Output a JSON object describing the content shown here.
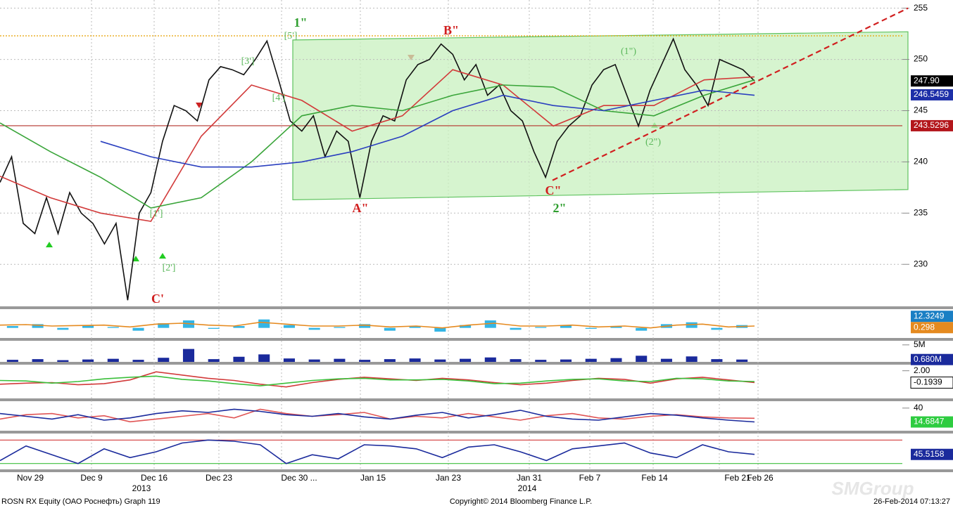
{
  "chart_data": [
    {
      "type": "line",
      "ylim": [
        225.9,
        255.8
      ],
      "yticks": [
        230,
        235,
        240,
        245,
        250,
        255
      ],
      "grid": true,
      "series": [
        {
          "color": "#111111",
          "values": [
            238,
            240.5,
            234,
            233,
            236.5,
            233,
            237,
            235,
            234,
            232,
            234,
            226.5,
            235,
            237,
            242,
            245.5,
            245,
            244,
            248,
            249.3,
            249,
            248.5,
            250,
            251.8,
            248,
            244,
            243,
            244.5,
            240.5,
            243,
            242,
            236.5,
            242,
            244.5,
            244,
            248,
            249.5,
            250,
            251.5,
            250.5,
            248,
            249.5,
            246.5,
            247.5,
            245,
            244,
            241,
            238.5,
            242,
            243.5,
            244.5,
            247.5,
            249,
            249.5,
            246.5,
            243.5,
            247,
            249.5,
            252,
            249,
            247.5,
            245.5,
            250,
            249.5,
            249,
            247.9
          ]
        },
        {
          "color": "#d23a3a",
          "values": [
            238.6,
            236.5,
            235,
            234.2,
            242.5,
            247.5,
            246,
            243,
            244.5,
            249,
            247.5,
            243.5,
            245.5,
            245.5,
            248,
            248.3
          ]
        },
        {
          "color": "#3aa53a",
          "values": [
            243.8,
            241,
            238.5,
            235.5,
            236.5,
            240,
            244.5,
            245.5,
            245,
            246.5,
            247.5,
            247.3,
            245,
            244.5,
            246.5,
            248
          ]
        },
        {
          "color": "#2a3fbf",
          "values": [
            null,
            null,
            242,
            240.5,
            239.5,
            239.5,
            240,
            241,
            242.5,
            245,
            246.5,
            245.5,
            245,
            246,
            247,
            246.5
          ]
        }
      ],
      "hlines": [
        {
          "value": 252.3,
          "color": "#e8a000"
        },
        {
          "value": 243.5296,
          "color": "#b5322b"
        }
      ],
      "channel": {
        "top": [
          251.9,
          252.7
        ],
        "bottom": [
          236.3,
          237.3
        ],
        "color": "#c8f0bf"
      },
      "trendline": {
        "values": [
          238.2,
          255
        ],
        "color": "#d11f1f"
      },
      "tags": [
        {
          "value": 247.9,
          "label": "247.90",
          "color": "#000000"
        },
        {
          "value": 246.5459,
          "color": "#1d2fa8"
        },
        {
          "value": 243.5296,
          "color": "#b3161b"
        }
      ],
      "annotations": [
        {
          "text": "1\"",
          "color": "#2e9e2e"
        },
        {
          "text": "[5']",
          "color": "#5cb85c"
        },
        {
          "text": "[3']",
          "color": "#5cb85c"
        },
        {
          "text": "[4']",
          "color": "#5cb85c"
        },
        {
          "text": "[1']",
          "color": "#5cb85c"
        },
        {
          "text": "[2']",
          "color": "#5cb85c"
        },
        {
          "text": "C'",
          "color": "#d11f1f"
        },
        {
          "text": "B\"",
          "color": "#d11f1f"
        },
        {
          "text": "A\"",
          "color": "#d11f1f"
        },
        {
          "text": "C\"",
          "color": "#d11f1f"
        },
        {
          "text": "2\"",
          "color": "#2e9e2e"
        },
        {
          "text": "(1\")",
          "color": "#5cb85c"
        },
        {
          "text": "(2\")",
          "color": "#5cb85c"
        }
      ]
    },
    {
      "type": "bar",
      "ylim": [
        -10,
        20
      ],
      "yticks": [],
      "series": [
        {
          "color": "#33b5e5",
          "values": [
            2,
            4,
            -2,
            3,
            1,
            -3,
            5,
            8,
            -1,
            2,
            9,
            3,
            -2,
            1,
            4,
            -3,
            2,
            -4,
            3,
            8,
            -2,
            1,
            3,
            -1,
            2,
            -3,
            4,
            6,
            -2,
            3
          ]
        },
        {
          "type": "line",
          "color": "#e58a1f",
          "values": [
            3,
            3.5,
            2,
            2.5,
            3,
            1,
            4,
            5,
            3,
            2,
            6,
            4,
            2,
            2,
            3,
            1,
            2,
            0,
            3,
            5,
            2,
            2,
            3,
            1,
            2,
            0,
            3,
            4,
            1,
            2
          ]
        }
      ],
      "tags": [
        {
          "value": 12.3249,
          "color": "#1a7fc4"
        },
        {
          "value": 0.298,
          "color": "#e58a1f"
        }
      ]
    },
    {
      "type": "bar",
      "ylim": [
        0,
        6
      ],
      "yticks": [
        {
          "value": 5,
          "label": "5M"
        }
      ],
      "series": [
        {
          "color": "#1a2a9c",
          "values": [
            0.6,
            0.8,
            0.5,
            0.7,
            0.9,
            0.6,
            1.2,
            3.8,
            0.8,
            1.5,
            2.2,
            1.0,
            0.7,
            0.9,
            0.6,
            0.8,
            1.0,
            0.7,
            0.9,
            1.3,
            0.8,
            0.6,
            0.7,
            0.9,
            1.1,
            1.8,
            0.9,
            1.6,
            0.8,
            0.68
          ]
        }
      ],
      "tags": [
        {
          "value": 0.68,
          "label": "0.680M",
          "color": "#1a2a9c"
        }
      ]
    },
    {
      "type": "line",
      "ylim": [
        -3,
        3
      ],
      "yticks": [
        {
          "value": 2,
          "label": "2.00"
        }
      ],
      "series": [
        {
          "color": "#d23a3a",
          "values": [
            -0.5,
            -0.3,
            -0.2,
            -0.6,
            -0.4,
            0.3,
            1.8,
            1.2,
            0.6,
            0.2,
            -0.5,
            -1.0,
            -0.2,
            0.4,
            0.8,
            0.5,
            0.2,
            0.6,
            0.3,
            -0.2,
            -0.6,
            -0.3,
            0.2,
            0.6,
            0.4,
            -0.3,
            0.5,
            0.8,
            0.3,
            -0.1939
          ]
        },
        {
          "color": "#3bbf3b",
          "values": [
            0.2,
            0.1,
            -0.3,
            0.0,
            0.5,
            0.8,
            1.0,
            0.4,
            0.1,
            -0.4,
            -0.8,
            -0.3,
            0.2,
            0.5,
            0.6,
            0.3,
            0.3,
            0.4,
            0.1,
            -0.4,
            -0.3,
            0.1,
            0.4,
            0.5,
            0.1,
            0.0,
            0.6,
            0.5,
            0.1,
            0.0
          ]
        }
      ],
      "tags": [
        {
          "value": -0.1939,
          "color": "#ffffff"
        }
      ]
    },
    {
      "type": "line",
      "ylim": [
        0,
        50
      ],
      "yticks": [
        40
      ],
      "series": [
        {
          "color": "#e05555",
          "values": [
            20,
            28,
            30,
            22,
            26,
            15,
            20,
            25,
            30,
            22,
            38,
            30,
            25,
            28,
            32,
            20,
            25,
            22,
            30,
            24,
            18,
            26,
            30,
            22,
            20,
            25,
            28,
            24,
            22,
            21.4
          ]
        },
        {
          "color": "#1a2a9c",
          "values": [
            30,
            25,
            20,
            28,
            18,
            22,
            30,
            35,
            32,
            38,
            34,
            28,
            25,
            30,
            24,
            20,
            27,
            32,
            22,
            28,
            36,
            25,
            20,
            18,
            24,
            30,
            27,
            22,
            18,
            14.6847
          ]
        }
      ],
      "tags": [
        {
          "value": 14.6847,
          "color": "#2ecc40"
        }
      ]
    },
    {
      "type": "line",
      "ylim": [
        20,
        80
      ],
      "yticks": [],
      "hlines": [
        {
          "value": 70,
          "color": "#d23a3a"
        },
        {
          "value": 30,
          "color": "#3bbf3b"
        }
      ],
      "series": [
        {
          "color": "#1a2a9c",
          "values": [
            35,
            60,
            45,
            30,
            55,
            40,
            50,
            65,
            70,
            68,
            62,
            30,
            45,
            38,
            62,
            60,
            55,
            40,
            58,
            62,
            50,
            35,
            55,
            60,
            65,
            48,
            40,
            62,
            50,
            45.5158
          ]
        }
      ],
      "tags": [
        {
          "value": 45.5158,
          "color": "#1a2a9c"
        }
      ]
    }
  ],
  "x_axis": {
    "labels": [
      "Nov 29",
      "Dec 9",
      "Dec 16",
      "Dec 23",
      "Dec 30 ...",
      "Jan 15",
      "Jan 23",
      "Jan 31",
      "Feb 7",
      "Feb 14",
      "Feb 21",
      "Feb 26"
    ],
    "years": [
      "2013",
      "2014"
    ]
  },
  "footer": {
    "left": "ROSN RX Equity (ОАО Роснефть) Graph 119",
    "center": "Copyright© 2014 Bloomberg Finance L.P.",
    "right": "26-Feb-2014 07:13:27"
  },
  "watermark": "SMGroup"
}
